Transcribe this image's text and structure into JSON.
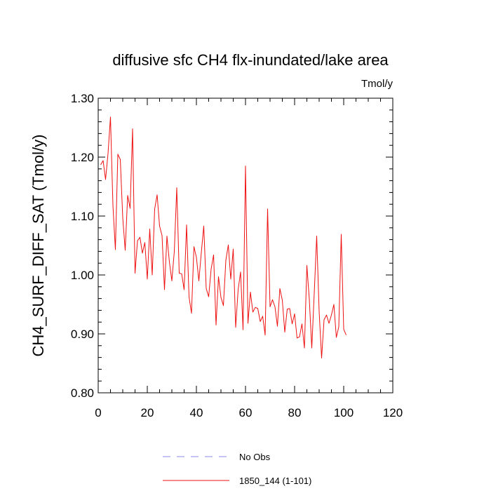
{
  "chart_data": {
    "type": "line",
    "title": "diffusive sfc CH4 flx-inundated/lake area",
    "units": "Tmol/y",
    "xlabel": "",
    "ylabel": "CH4_SURF_DIFF_SAT  (Tmol/y)",
    "xlim": [
      0,
      120
    ],
    "ylim": [
      0.8,
      1.3
    ],
    "x_ticks": [
      0,
      20,
      40,
      60,
      80,
      100,
      120
    ],
    "x_tick_labels": [
      "0",
      "20",
      "40",
      "60",
      "80",
      "100",
      "120"
    ],
    "y_ticks": [
      0.8,
      0.9,
      1.0,
      1.1,
      1.2,
      1.3
    ],
    "y_tick_labels": [
      "0.80",
      "0.90",
      "1.00",
      "1.10",
      "1.20",
      "1.30"
    ],
    "grid": false,
    "legend_position": "bottom",
    "legend": [
      {
        "label": "No Obs",
        "color": "#8888ee",
        "style": "dashed"
      },
      {
        "label": "1850_144 (1-101)",
        "color": "#ee1111",
        "style": "solid"
      }
    ],
    "series": [
      {
        "name": "1850_144 (1-101)",
        "color": "#ee1111",
        "x": [
          1,
          2,
          3,
          4,
          5,
          6,
          7,
          8,
          9,
          10,
          11,
          12,
          13,
          14,
          15,
          16,
          17,
          18,
          19,
          20,
          21,
          22,
          23,
          24,
          25,
          26,
          27,
          28,
          29,
          30,
          31,
          32,
          33,
          34,
          35,
          36,
          37,
          38,
          39,
          40,
          41,
          42,
          43,
          44,
          45,
          46,
          47,
          48,
          49,
          50,
          51,
          52,
          53,
          54,
          55,
          56,
          57,
          58,
          59,
          60,
          61,
          62,
          63,
          64,
          65,
          66,
          67,
          68,
          69,
          70,
          71,
          72,
          73,
          74,
          75,
          76,
          77,
          78,
          79,
          80,
          81,
          82,
          83,
          84,
          85,
          86,
          87,
          88,
          89,
          90,
          91,
          92,
          93,
          94,
          95,
          96,
          97,
          98,
          99,
          100,
          101
        ],
        "values": [
          1.187,
          1.194,
          1.162,
          1.206,
          1.268,
          1.118,
          1.043,
          1.205,
          1.196,
          1.097,
          1.042,
          1.135,
          1.113,
          1.248,
          1.003,
          1.058,
          1.064,
          1.037,
          1.055,
          0.993,
          1.078,
          1.0,
          1.112,
          1.136,
          1.083,
          1.067,
          0.975,
          1.066,
          1.022,
          0.99,
          1.04,
          1.148,
          1.003,
          1.002,
          0.975,
          1.085,
          0.963,
          0.935,
          1.048,
          1.03,
          0.99,
          1.038,
          1.083,
          0.977,
          0.963,
          1.01,
          1.034,
          0.915,
          0.997,
          0.962,
          0.948,
          1.025,
          1.051,
          0.993,
          1.044,
          0.911,
          0.975,
          1.005,
          0.907,
          1.185,
          0.918,
          0.971,
          0.937,
          0.945,
          0.943,
          0.921,
          0.93,
          0.898,
          1.112,
          0.946,
          0.958,
          0.946,
          0.913,
          0.977,
          0.957,
          0.903,
          0.942,
          0.943,
          0.917,
          0.934,
          0.893,
          0.895,
          0.917,
          0.876,
          1.016,
          0.958,
          0.876,
          0.969,
          1.066,
          0.938,
          0.859,
          0.924,
          0.932,
          0.918,
          0.932,
          0.95,
          0.894,
          0.912,
          1.069,
          0.908,
          0.898
        ]
      }
    ]
  }
}
